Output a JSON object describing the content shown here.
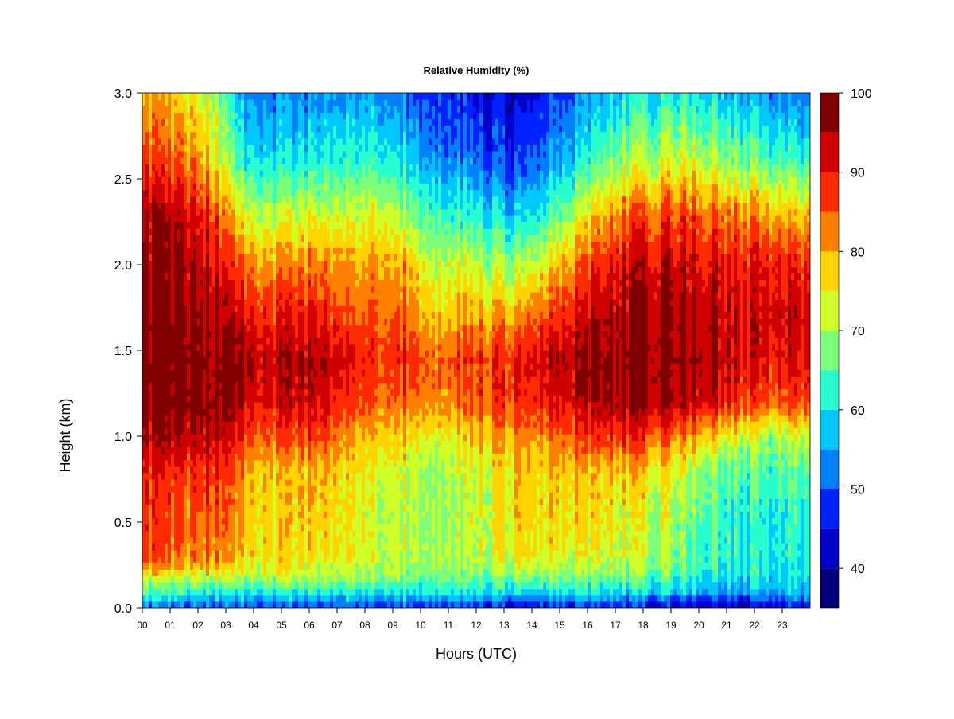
{
  "chart_data": {
    "type": "heatmap",
    "title": "Relative Humidity (%)",
    "xlabel": "Hours (UTC)",
    "ylabel": "Height (km)",
    "x_ticks": [
      "00",
      "01",
      "02",
      "03",
      "04",
      "05",
      "06",
      "07",
      "08",
      "09",
      "10",
      "11",
      "12",
      "13",
      "14",
      "15",
      "16",
      "17",
      "18",
      "19",
      "20",
      "21",
      "22",
      "23"
    ],
    "y_ticks": [
      "0.0",
      "0.5",
      "1.0",
      "1.5",
      "2.0",
      "2.5",
      "3.0"
    ],
    "y_tick_values": [
      0.0,
      0.5,
      1.0,
      1.5,
      2.0,
      2.5,
      3.0
    ],
    "xlim": [
      0,
      24
    ],
    "ylim": [
      0,
      3.0
    ],
    "colorbar": {
      "label_values": [
        "40",
        "50",
        "60",
        "70",
        "80",
        "90",
        "100"
      ],
      "range": [
        35,
        100
      ],
      "levels": [
        {
          "from": 35,
          "to": 40,
          "color": "#00007f"
        },
        {
          "from": 40,
          "to": 45,
          "color": "#0000c8"
        },
        {
          "from": 45,
          "to": 50,
          "color": "#0022ff"
        },
        {
          "from": 50,
          "to": 55,
          "color": "#0080ff"
        },
        {
          "from": 55,
          "to": 60,
          "color": "#00c8ff"
        },
        {
          "from": 60,
          "to": 65,
          "color": "#29ffce"
        },
        {
          "from": 65,
          "to": 70,
          "color": "#7dff7a"
        },
        {
          "from": 70,
          "to": 75,
          "color": "#ceff29"
        },
        {
          "from": 75,
          "to": 80,
          "color": "#ffd400"
        },
        {
          "from": 80,
          "to": 85,
          "color": "#ff8000"
        },
        {
          "from": 85,
          "to": 90,
          "color": "#ff2a00"
        },
        {
          "from": 90,
          "to": 95,
          "color": "#d00000"
        },
        {
          "from": 95,
          "to": 100,
          "color": "#7f0000"
        }
      ]
    },
    "heights_km": [
      0.0,
      0.05,
      0.1,
      0.2,
      0.3,
      0.5,
      0.8,
      1.0,
      1.2,
      1.45,
      1.7,
      2.0,
      2.3,
      2.6,
      3.0
    ],
    "hourly_rh": [
      {
        "hour": 0.5,
        "rh": [
          50,
          57,
          63,
          75,
          85,
          85,
          88,
          93,
          97,
          98,
          96,
          95,
          93,
          85,
          78
        ]
      },
      {
        "hour": 1.5,
        "rh": [
          50,
          57,
          63,
          73,
          82,
          83,
          87,
          93,
          97,
          98,
          96,
          95,
          92,
          83,
          76
        ]
      },
      {
        "hour": 2.5,
        "rh": [
          50,
          57,
          63,
          75,
          84,
          86,
          90,
          95,
          98,
          98,
          96,
          93,
          88,
          78,
          72
        ]
      },
      {
        "hour": 3.5,
        "rh": [
          50,
          55,
          62,
          72,
          78,
          80,
          82,
          88,
          95,
          97,
          92,
          85,
          75,
          63,
          55
        ]
      },
      {
        "hour": 4.5,
        "rh": [
          48,
          55,
          62,
          72,
          76,
          76,
          78,
          85,
          90,
          93,
          88,
          80,
          70,
          60,
          53
        ]
      },
      {
        "hour": 5.5,
        "rh": [
          48,
          55,
          62,
          72,
          76,
          77,
          78,
          85,
          92,
          95,
          90,
          82,
          72,
          60,
          52
        ]
      },
      {
        "hour": 6.5,
        "rh": [
          48,
          55,
          62,
          72,
          76,
          78,
          80,
          87,
          92,
          95,
          90,
          83,
          73,
          62,
          54
        ]
      },
      {
        "hour": 7.5,
        "rh": [
          48,
          55,
          62,
          70,
          74,
          74,
          76,
          80,
          87,
          90,
          85,
          80,
          72,
          62,
          54
        ]
      },
      {
        "hour": 8.5,
        "rh": [
          48,
          55,
          62,
          70,
          73,
          72,
          74,
          78,
          85,
          88,
          85,
          82,
          74,
          63,
          55
        ]
      },
      {
        "hour": 9.5,
        "rh": [
          48,
          55,
          62,
          70,
          72,
          72,
          73,
          78,
          85,
          90,
          85,
          80,
          70,
          60,
          52
        ]
      },
      {
        "hour": 10.5,
        "rh": [
          48,
          55,
          62,
          68,
          71,
          70,
          70,
          75,
          82,
          85,
          78,
          72,
          64,
          55,
          48
        ]
      },
      {
        "hour": 11.5,
        "rh": [
          47,
          55,
          62,
          68,
          70,
          70,
          72,
          76,
          83,
          86,
          80,
          72,
          62,
          52,
          46
        ]
      },
      {
        "hour": 12.5,
        "rh": [
          45,
          53,
          60,
          68,
          72,
          73,
          74,
          80,
          86,
          88,
          80,
          70,
          60,
          50,
          44
        ]
      },
      {
        "hour": 13.5,
        "rh": [
          43,
          52,
          60,
          70,
          76,
          78,
          78,
          82,
          88,
          90,
          82,
          70,
          58,
          48,
          43
        ]
      },
      {
        "hour": 14.5,
        "rh": [
          45,
          53,
          60,
          70,
          74,
          76,
          78,
          82,
          90,
          93,
          87,
          75,
          63,
          53,
          48
        ]
      },
      {
        "hour": 15.5,
        "rh": [
          45,
          53,
          60,
          68,
          73,
          76,
          78,
          85,
          92,
          95,
          90,
          82,
          70,
          58,
          50
        ]
      },
      {
        "hour": 16.5,
        "rh": [
          45,
          53,
          60,
          68,
          72,
          75,
          78,
          87,
          95,
          97,
          93,
          88,
          78,
          65,
          55
        ]
      },
      {
        "hour": 17.5,
        "rh": [
          45,
          52,
          60,
          68,
          72,
          73,
          78,
          87,
          96,
          98,
          96,
          93,
          85,
          70,
          60
        ]
      },
      {
        "hour": 18.5,
        "rh": [
          43,
          52,
          60,
          67,
          70,
          72,
          76,
          86,
          96,
          98,
          96,
          93,
          85,
          72,
          60
        ]
      },
      {
        "hour": 19.5,
        "rh": [
          42,
          50,
          58,
          65,
          67,
          68,
          72,
          83,
          95,
          97,
          96,
          93,
          87,
          74,
          62
        ]
      },
      {
        "hour": 20.5,
        "rh": [
          42,
          50,
          57,
          63,
          64,
          65,
          68,
          78,
          93,
          96,
          95,
          92,
          85,
          72,
          60
        ]
      },
      {
        "hour": 21.5,
        "rh": [
          40,
          48,
          55,
          60,
          62,
          62,
          65,
          73,
          88,
          92,
          92,
          90,
          82,
          68,
          56
        ]
      },
      {
        "hour": 22.5,
        "rh": [
          42,
          50,
          56,
          60,
          61,
          61,
          64,
          70,
          85,
          90,
          92,
          90,
          80,
          65,
          54
        ]
      },
      {
        "hour": 23.5,
        "rh": [
          44,
          52,
          57,
          60,
          61,
          62,
          65,
          72,
          86,
          91,
          92,
          89,
          78,
          63,
          52
        ]
      }
    ]
  }
}
